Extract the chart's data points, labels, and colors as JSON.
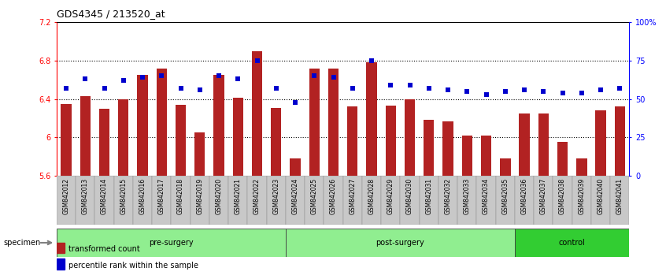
{
  "title": "GDS4345 / 213520_at",
  "samples": [
    "GSM842012",
    "GSM842013",
    "GSM842014",
    "GSM842015",
    "GSM842016",
    "GSM842017",
    "GSM842018",
    "GSM842019",
    "GSM842020",
    "GSM842021",
    "GSM842022",
    "GSM842023",
    "GSM842024",
    "GSM842025",
    "GSM842026",
    "GSM842027",
    "GSM842028",
    "GSM842029",
    "GSM842030",
    "GSM842031",
    "GSM842032",
    "GSM842033",
    "GSM842034",
    "GSM842035",
    "GSM842036",
    "GSM842037",
    "GSM842038",
    "GSM842039",
    "GSM842040",
    "GSM842041"
  ],
  "bar_values": [
    6.35,
    6.43,
    6.3,
    6.4,
    6.65,
    6.72,
    6.34,
    6.05,
    6.65,
    6.41,
    6.9,
    6.31,
    5.78,
    6.72,
    6.72,
    6.32,
    6.78,
    6.33,
    6.4,
    6.18,
    6.17,
    6.02,
    6.02,
    5.78,
    6.25,
    6.25,
    5.95,
    5.78,
    6.28,
    6.32
  ],
  "percentile_values": [
    57,
    63,
    57,
    62,
    64,
    65,
    57,
    56,
    65,
    63,
    75,
    57,
    48,
    65,
    64,
    57,
    75,
    59,
    59,
    57,
    56,
    55,
    53,
    55,
    56,
    55,
    54,
    54,
    56,
    57
  ],
  "groups": [
    {
      "label": "pre-surgery",
      "start": 0,
      "end": 12,
      "color": "#90EE90"
    },
    {
      "label": "post-surgery",
      "start": 12,
      "end": 24,
      "color": "#90EE90"
    },
    {
      "label": "control",
      "start": 24,
      "end": 30,
      "color": "#32CD32"
    }
  ],
  "ylim_left": [
    5.6,
    7.2
  ],
  "ylim_right": [
    0,
    100
  ],
  "bar_color": "#B22222",
  "dot_color": "#0000CD",
  "bar_bottom": 5.6,
  "yticks_left": [
    5.6,
    6.0,
    6.4,
    6.8,
    7.2
  ],
  "ytick_labels_left": [
    "5.6",
    "6",
    "6.4",
    "6.8",
    "7.2"
  ],
  "yticks_right": [
    0,
    25,
    50,
    75,
    100
  ],
  "ytick_labels_right": [
    "0",
    "25",
    "50",
    "75",
    "100%"
  ],
  "hlines": [
    6.0,
    6.4,
    6.8
  ],
  "specimen_label": "specimen",
  "legend_items": [
    {
      "color": "#B22222",
      "label": "transformed count"
    },
    {
      "color": "#0000CD",
      "label": "percentile rank within the sample"
    }
  ],
  "background_color": "#ffffff",
  "xticklabel_bg": "#d0d0d0"
}
